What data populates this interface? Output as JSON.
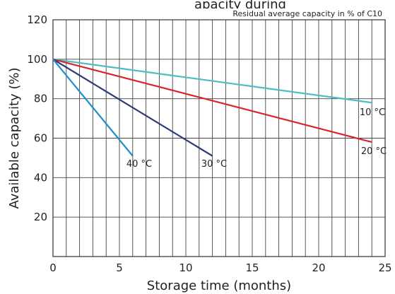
{
  "chart_data": {
    "type": "line",
    "title_fragment": "apacity during",
    "annotation": "Residual average capacity in % of C10",
    "xlabel": "Storage time (months)",
    "ylabel": "Available capacity (%)",
    "xlim": [
      0,
      25
    ],
    "ylim": [
      0,
      120
    ],
    "x_ticks": [
      "0",
      "5",
      "10",
      "15",
      "20",
      "25"
    ],
    "y_ticks": [
      "20",
      "40",
      "60",
      "80",
      "100",
      "120"
    ],
    "grid": true,
    "series": [
      {
        "name": "10 °C",
        "color": "#4dbdc4",
        "x": [
          0,
          24
        ],
        "y": [
          100,
          78
        ]
      },
      {
        "name": "20 °C",
        "color": "#d9232e",
        "x": [
          0,
          24
        ],
        "y": [
          100,
          58
        ]
      },
      {
        "name": "30 °C",
        "color": "#2b3a7a",
        "x": [
          0,
          12
        ],
        "y": [
          100,
          51
        ]
      },
      {
        "name": "40 °C",
        "color": "#1f8fc9",
        "x": [
          0,
          6
        ],
        "y": [
          100,
          51
        ]
      }
    ]
  }
}
